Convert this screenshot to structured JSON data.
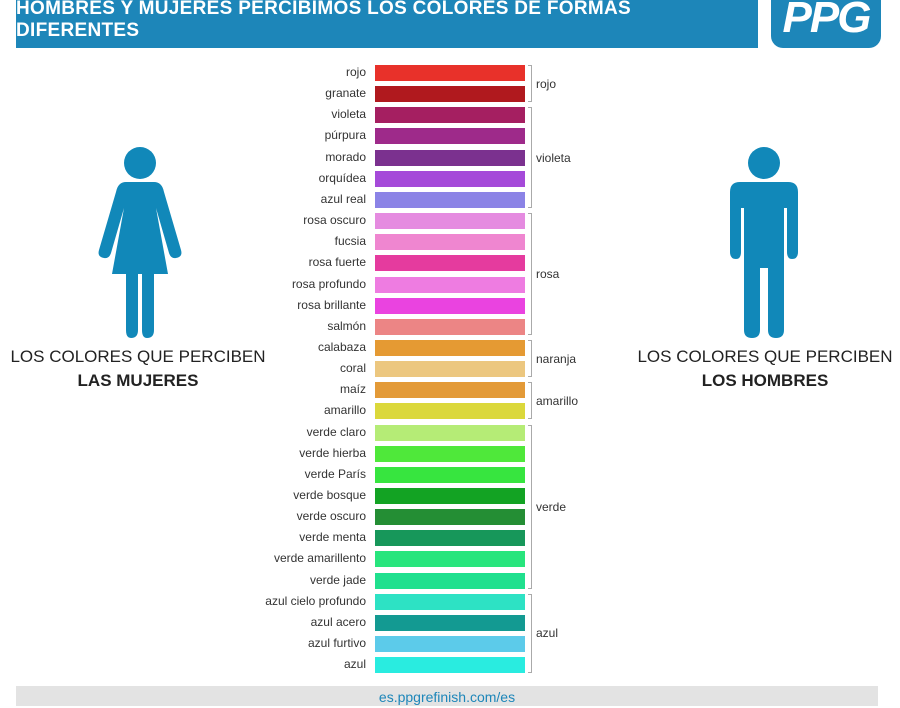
{
  "header": {
    "title": "HOMBRES Y MUJERES PERCIBIMOS LOS COLORES DE FORMAS DIFERENTES"
  },
  "logo": {
    "text": "PPG"
  },
  "women": {
    "caption_line1": "LOS COLORES QUE PERCIBEN",
    "caption_line2": "LAS MUJERES",
    "color": "#1188b9"
  },
  "men": {
    "caption_line1": "LOS COLORES QUE PERCIBEN",
    "caption_line2": "LOS HOMBRES",
    "color": "#1188b9"
  },
  "women_colors": [
    {
      "name": "rojo",
      "color": "#e8312a"
    },
    {
      "name": "granate",
      "color": "#b0191e"
    },
    {
      "name": "violeta",
      "color": "#a51f61"
    },
    {
      "name": "púrpura",
      "color": "#9e2a8a"
    },
    {
      "name": "morado",
      "color": "#7b318f"
    },
    {
      "name": "orquídea",
      "color": "#a54ad9"
    },
    {
      "name": "azul real",
      "color": "#8b83e6"
    },
    {
      "name": "rosa oscuro",
      "color": "#e58be0"
    },
    {
      "name": "fucsia",
      "color": "#ef86d0"
    },
    {
      "name": "rosa fuerte",
      "color": "#e53b9e"
    },
    {
      "name": "rosa profundo",
      "color": "#ee7ce1"
    },
    {
      "name": "rosa brillante",
      "color": "#ea43e0"
    },
    {
      "name": "salmón",
      "color": "#ec8585"
    },
    {
      "name": "calabaza",
      "color": "#e59a33"
    },
    {
      "name": "coral",
      "color": "#ecc77f"
    },
    {
      "name": "maíz",
      "color": "#e39a38"
    },
    {
      "name": "amarillo",
      "color": "#dbd83b"
    },
    {
      "name": "verde claro",
      "color": "#b5ec76"
    },
    {
      "name": "verde hierba",
      "color": "#4fe83a"
    },
    {
      "name": "verde París",
      "color": "#37e53f"
    },
    {
      "name": "verde bosque",
      "color": "#13a323"
    },
    {
      "name": "verde oscuro",
      "color": "#248e34"
    },
    {
      "name": "verde menta",
      "color": "#17975a"
    },
    {
      "name": "verde amarillento",
      "color": "#28e57d"
    },
    {
      "name": "verde jade",
      "color": "#20e08e"
    },
    {
      "name": "azul cielo profundo",
      "color": "#2de2c4"
    },
    {
      "name": "azul acero",
      "color": "#139a92"
    },
    {
      "name": "azul furtivo",
      "color": "#5ccbea"
    },
    {
      "name": "azul",
      "color": "#29ece0"
    }
  ],
  "men_groups": [
    {
      "name": "rojo",
      "start": 0,
      "end": 1
    },
    {
      "name": "violeta",
      "start": 2,
      "end": 6
    },
    {
      "name": "rosa",
      "start": 7,
      "end": 12
    },
    {
      "name": "naranja",
      "start": 13,
      "end": 14
    },
    {
      "name": "amarillo",
      "start": 15,
      "end": 16
    },
    {
      "name": "verde",
      "start": 17,
      "end": 24
    },
    {
      "name": "azul",
      "start": 25,
      "end": 28
    }
  ],
  "footer": {
    "text": "es.ppgrefinish.com/es"
  }
}
